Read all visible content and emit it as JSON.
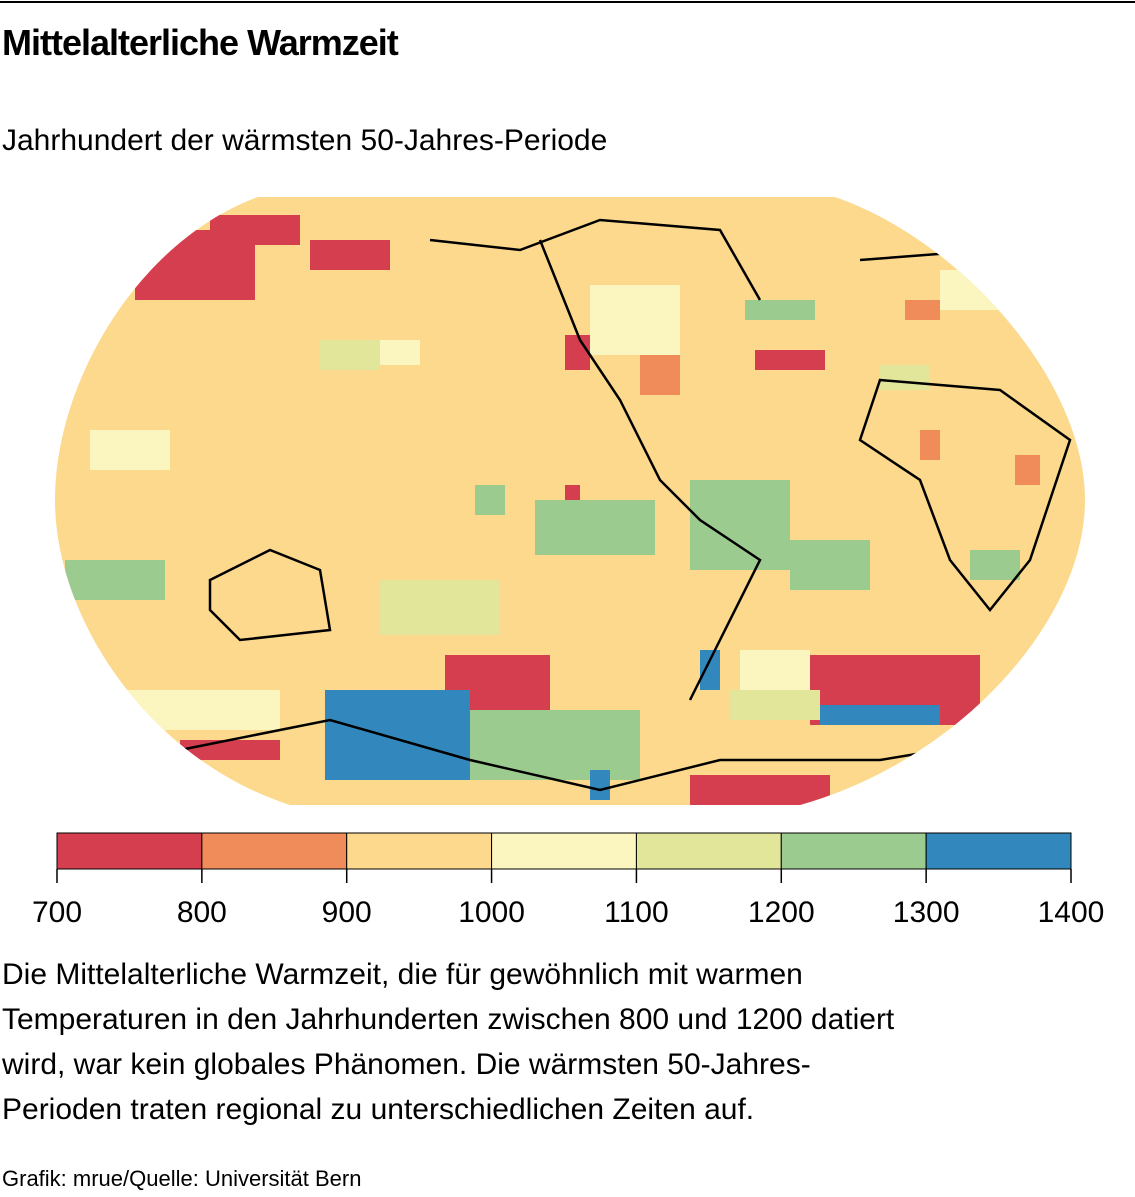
{
  "header": {
    "title": "Mittelalterliche Warmzeit",
    "subtitle": "Jahrhundert der wärmsten 50-Jahres-Periode"
  },
  "legend": {
    "ticks": [
      700,
      800,
      900,
      1000,
      1100,
      1200,
      1300,
      1400
    ],
    "colors": [
      "#d53e4f",
      "#f08c5a",
      "#fcd98c",
      "#fbf5c0",
      "#e1e69a",
      "#9ccb8f",
      "#3288bd"
    ]
  },
  "description": [
    "Die Mittelalterliche Warmzeit, die für gewöhnlich mit warmen",
    "Temperaturen in den Jahrhunderten zwischen 800 und 1200 datiert",
    "wird, war kein globales Phänomen. Die wärmsten 50-Jahres-",
    "Perioden traten regional zu unterschiedlichen Zeiten auf."
  ],
  "credit": "Grafik: mrue/Quelle: Universität Bern"
}
